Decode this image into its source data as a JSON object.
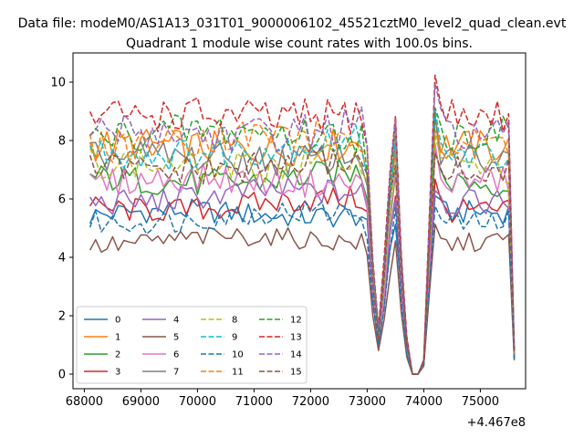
{
  "figure": {
    "suptitle": "Data file: modeM0/AS1A13_031T01_9000006102_45521cztM0_level2_quad_clean.evt"
  },
  "chart_data": {
    "type": "line",
    "title": "Quadrant 1 module wise count rates with 100.0s bins.",
    "xlabel": "",
    "ylabel": "",
    "x_offset_label": "+4.467e8",
    "xlim": [
      67800,
      75800
    ],
    "ylim": [
      -0.5,
      11.0
    ],
    "xticks": [
      68000,
      69000,
      70000,
      71000,
      72000,
      73000,
      74000,
      75000
    ],
    "xtick_labels": [
      "68000",
      "69000",
      "70000",
      "71000",
      "72000",
      "73000",
      "74000",
      "75000"
    ],
    "yticks": [
      0,
      2,
      4,
      6,
      8,
      10
    ],
    "ytick_labels": [
      "0",
      "2",
      "4",
      "6",
      "8",
      "10"
    ],
    "grid": false,
    "legend": {
      "placement": "lower-left",
      "columns": 4
    },
    "bins": {
      "start": 68100,
      "step": 100,
      "count": 76
    },
    "series": [
      {
        "name": "0",
        "color": "#1f77b4",
        "dash": "solid",
        "base": 5.4
      },
      {
        "name": "1",
        "color": "#ff7f0e",
        "dash": "solid",
        "base": 7.7
      },
      {
        "name": "2",
        "color": "#2ca02c",
        "dash": "solid",
        "base": 6.6
      },
      {
        "name": "3",
        "color": "#d62728",
        "dash": "solid",
        "base": 5.7
      },
      {
        "name": "4",
        "color": "#9467bd",
        "dash": "solid",
        "base": 6.0
      },
      {
        "name": "5",
        "color": "#8c564b",
        "dash": "solid",
        "base": 4.5
      },
      {
        "name": "6",
        "color": "#e377c2",
        "dash": "solid",
        "base": 6.5
      },
      {
        "name": "7",
        "color": "#7f7f7f",
        "dash": "solid",
        "base": 7.3
      },
      {
        "name": "8",
        "color": "#bcbd22",
        "dash": "dashed",
        "base": 7.1
      },
      {
        "name": "9",
        "color": "#17becf",
        "dash": "dashed",
        "base": 7.6
      },
      {
        "name": "10",
        "color": "#1f77b4",
        "dash": "dashed",
        "base": 5.3
      },
      {
        "name": "11",
        "color": "#ff7f0e",
        "dash": "dashed",
        "base": 7.9
      },
      {
        "name": "12",
        "color": "#2ca02c",
        "dash": "dashed",
        "base": 8.1
      },
      {
        "name": "13",
        "color": "#d62728",
        "dash": "dashed",
        "base": 8.7
      },
      {
        "name": "14",
        "color": "#9467bd",
        "dash": "dashed",
        "base": 8.2
      },
      {
        "name": "15",
        "color": "#8c564b",
        "dash": "dashed",
        "base": 7.0
      }
    ],
    "shape_points": [
      [
        68100,
        1.0
      ],
      [
        72900,
        1.03
      ],
      [
        73000,
        0.93
      ],
      [
        73100,
        0.45
      ],
      [
        73200,
        0.18
      ],
      [
        73300,
        0.45
      ],
      [
        73400,
        0.8
      ],
      [
        73500,
        1.02
      ],
      [
        73600,
        0.5
      ],
      [
        73700,
        0.14
      ],
      [
        73800,
        0.0
      ],
      [
        73900,
        0.0
      ],
      [
        74000,
        0.06
      ],
      [
        74100,
        0.6
      ],
      [
        74200,
        1.15
      ],
      [
        74300,
        1.02
      ],
      [
        74400,
        1.0
      ],
      [
        75500,
        1.0
      ],
      [
        75600,
        0.1
      ]
    ]
  }
}
